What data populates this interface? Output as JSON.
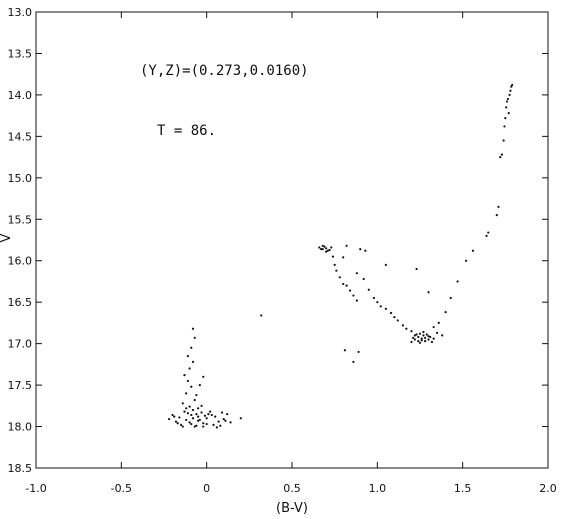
{
  "chart_data": {
    "type": "scatter",
    "xlabel": "(B-V)",
    "ylabel": "V",
    "xlim": [
      -1.0,
      2.0
    ],
    "ylim": [
      18.5,
      13.0
    ],
    "y_inverted": true,
    "grid": false,
    "x_tick_labels": [
      "-1.0",
      "-0.5",
      "0",
      "0.5",
      "1.0",
      "1.5",
      "2.0"
    ],
    "y_tick_labels": [
      "13.0",
      "13.5",
      "14.0",
      "14.5",
      "15.0",
      "15.5",
      "16.0",
      "16.5",
      "17.0",
      "17.5",
      "18.0",
      "18.5"
    ],
    "annotations": [
      {
        "text": "(Y,Z)=(0.273,0.0160)"
      },
      {
        "text": "T = 86."
      }
    ],
    "series": [
      {
        "points": [
          [
            -0.12,
            17.92
          ],
          [
            -0.1,
            17.95
          ],
          [
            -0.08,
            17.9
          ],
          [
            -0.05,
            17.88
          ],
          [
            -0.02,
            17.96
          ],
          [
            -0.15,
            17.98
          ],
          [
            -0.18,
            17.94
          ],
          [
            -0.07,
            18.0
          ],
          [
            -0.04,
            17.92
          ],
          [
            0.0,
            17.97
          ],
          [
            -0.11,
            17.84
          ],
          [
            -0.13,
            17.82
          ],
          [
            -0.09,
            17.86
          ],
          [
            -0.06,
            17.85
          ],
          [
            -0.03,
            17.83
          ],
          [
            -0.01,
            17.87
          ],
          [
            -0.16,
            17.89
          ],
          [
            -0.2,
            17.86
          ],
          [
            -0.22,
            17.91
          ],
          [
            0.02,
            17.82
          ],
          [
            -0.08,
            17.8
          ],
          [
            -0.05,
            17.78
          ],
          [
            -0.1,
            17.76
          ],
          [
            -0.14,
            17.72
          ],
          [
            -0.07,
            17.68
          ],
          [
            -0.12,
            17.6
          ],
          [
            -0.09,
            17.52
          ],
          [
            -0.11,
            17.45
          ],
          [
            -0.13,
            17.38
          ],
          [
            -0.1,
            17.3
          ],
          [
            -0.08,
            17.22
          ],
          [
            -0.11,
            17.15
          ],
          [
            -0.09,
            17.05
          ],
          [
            -0.07,
            16.93
          ],
          [
            -0.08,
            16.82
          ],
          [
            -0.04,
            17.5
          ],
          [
            -0.02,
            17.4
          ],
          [
            -0.06,
            17.62
          ],
          [
            0.05,
            17.88
          ],
          [
            0.1,
            17.91
          ],
          [
            0.12,
            17.85
          ],
          [
            0.14,
            17.95
          ],
          [
            0.08,
            17.99
          ],
          [
            0.04,
            17.98
          ],
          [
            -0.06,
            17.99
          ],
          [
            0.06,
            18.01
          ],
          [
            0.0,
            17.9
          ],
          [
            -0.17,
            17.96
          ],
          [
            -0.19,
            17.88
          ],
          [
            0.11,
            17.93
          ],
          [
            -0.03,
            17.75
          ],
          [
            -0.12,
            17.78
          ],
          [
            0.03,
            17.86
          ],
          [
            -0.05,
            17.93
          ],
          [
            -0.09,
            17.97
          ],
          [
            -0.14,
            18.0
          ],
          [
            0.09,
            17.83
          ],
          [
            0.07,
            17.94
          ],
          [
            0.01,
            17.85
          ],
          [
            -0.02,
            18.0
          ],
          [
            0.2,
            17.9
          ],
          [
            0.32,
            16.66
          ],
          [
            0.66,
            15.84
          ],
          [
            0.68,
            15.86
          ],
          [
            0.7,
            15.85
          ],
          [
            0.72,
            15.87
          ],
          [
            0.69,
            15.83
          ],
          [
            0.71,
            15.88
          ],
          [
            0.67,
            15.86
          ],
          [
            0.73,
            15.84
          ],
          [
            0.7,
            15.89
          ],
          [
            0.68,
            15.82
          ],
          [
            0.74,
            15.95
          ],
          [
            0.75,
            16.05
          ],
          [
            0.76,
            16.12
          ],
          [
            0.78,
            16.2
          ],
          [
            0.8,
            16.28
          ],
          [
            0.82,
            16.3
          ],
          [
            0.84,
            16.36
          ],
          [
            0.86,
            16.42
          ],
          [
            0.88,
            16.48
          ],
          [
            0.8,
            15.96
          ],
          [
            0.82,
            15.82
          ],
          [
            0.9,
            15.86
          ],
          [
            0.93,
            15.88
          ],
          [
            0.88,
            16.15
          ],
          [
            0.92,
            16.22
          ],
          [
            0.95,
            16.35
          ],
          [
            0.98,
            16.45
          ],
          [
            1.0,
            16.5
          ],
          [
            1.02,
            16.55
          ],
          [
            1.05,
            16.58
          ],
          [
            1.08,
            16.63
          ],
          [
            1.1,
            16.68
          ],
          [
            1.12,
            16.72
          ],
          [
            1.15,
            16.78
          ],
          [
            1.17,
            16.82
          ],
          [
            1.05,
            16.05
          ],
          [
            1.2,
            16.85
          ],
          [
            1.22,
            16.9
          ],
          [
            1.24,
            16.92
          ],
          [
            1.26,
            16.94
          ],
          [
            1.28,
            16.93
          ],
          [
            1.3,
            16.91
          ],
          [
            1.22,
            16.95
          ],
          [
            1.24,
            16.97
          ],
          [
            1.26,
            16.96
          ],
          [
            1.28,
            16.97
          ],
          [
            1.3,
            16.95
          ],
          [
            1.23,
            16.89
          ],
          [
            1.25,
            16.88
          ],
          [
            1.27,
            16.9
          ],
          [
            1.29,
            16.89
          ],
          [
            1.31,
            16.92
          ],
          [
            1.33,
            16.94
          ],
          [
            1.21,
            16.93
          ],
          [
            1.25,
            16.99
          ],
          [
            1.32,
            16.98
          ],
          [
            1.35,
            16.87
          ],
          [
            1.38,
            16.9
          ],
          [
            1.2,
            16.98
          ],
          [
            1.27,
            16.86
          ],
          [
            1.33,
            16.8
          ],
          [
            1.36,
            16.75
          ],
          [
            1.4,
            16.62
          ],
          [
            1.43,
            16.45
          ],
          [
            1.47,
            16.25
          ],
          [
            1.52,
            16.0
          ],
          [
            1.56,
            15.88
          ],
          [
            1.64,
            15.7
          ],
          [
            1.65,
            15.66
          ],
          [
            1.3,
            16.38
          ],
          [
            1.23,
            16.1
          ],
          [
            0.81,
            17.08
          ],
          [
            0.86,
            17.22
          ],
          [
            0.89,
            17.1
          ],
          [
            1.7,
            15.45
          ],
          [
            1.71,
            15.35
          ],
          [
            1.72,
            14.75
          ],
          [
            1.73,
            14.72
          ],
          [
            1.74,
            14.55
          ],
          [
            1.745,
            14.38
          ],
          [
            1.75,
            14.28
          ],
          [
            1.755,
            14.15
          ],
          [
            1.76,
            14.08
          ],
          [
            1.765,
            14.05
          ],
          [
            1.78,
            13.95
          ],
          [
            1.785,
            13.9
          ],
          [
            1.79,
            13.88
          ],
          [
            1.775,
            14.0
          ],
          [
            1.77,
            14.22
          ]
        ]
      }
    ]
  }
}
